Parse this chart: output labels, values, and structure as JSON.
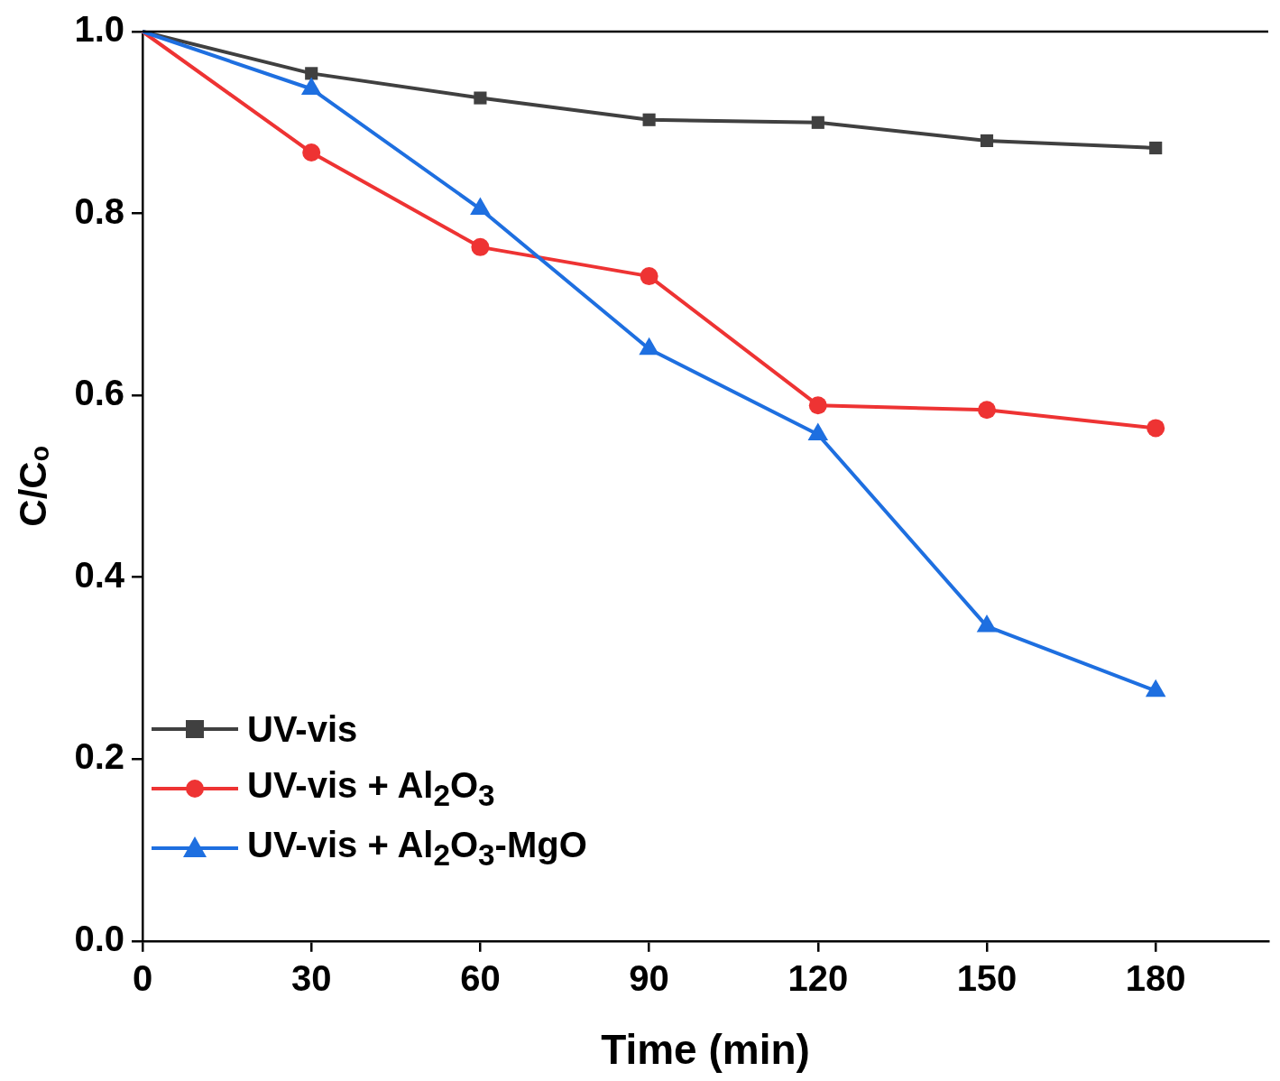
{
  "chart_data": {
    "type": "line",
    "xlabel": "Time (min)",
    "ylabel": "C/Cₒ",
    "x": [
      0,
      30,
      60,
      90,
      120,
      150,
      180
    ],
    "series": [
      {
        "name": "UV-vis",
        "color": "#404040",
        "marker": "square",
        "values": [
          1.0,
          0.954,
          0.927,
          0.903,
          0.9,
          0.88,
          0.872
        ]
      },
      {
        "name": "UV-vis + Al$_{2}$O$_{3}$",
        "color": "#ee3333",
        "marker": "circle",
        "values": [
          1.0,
          0.867,
          0.763,
          0.731,
          0.589,
          0.584,
          0.564
        ]
      },
      {
        "name": "UV-vis + Al$_{2}$O$_{3}$-MgO",
        "color": "#1e6fe0",
        "marker": "triangle",
        "values": [
          1.0,
          0.937,
          0.805,
          0.651,
          0.557,
          0.346,
          0.275
        ]
      }
    ],
    "xlim": [
      0,
      200
    ],
    "xticks": [
      0,
      30,
      60,
      90,
      120,
      150,
      180
    ],
    "ylim": [
      0,
      1.0
    ],
    "yticks": [
      {
        "value": 0,
        "label": "0.0"
      },
      {
        "value": 0.2,
        "label": "0.2"
      },
      {
        "value": 0.4,
        "label": "0.4"
      },
      {
        "value": 0.6,
        "label": "0.6"
      },
      {
        "value": 0.8,
        "label": "0.8"
      },
      {
        "value": 1.0,
        "label": "1.0"
      }
    ],
    "grid": false,
    "legend": "bottom left",
    "line_style": "solid"
  }
}
